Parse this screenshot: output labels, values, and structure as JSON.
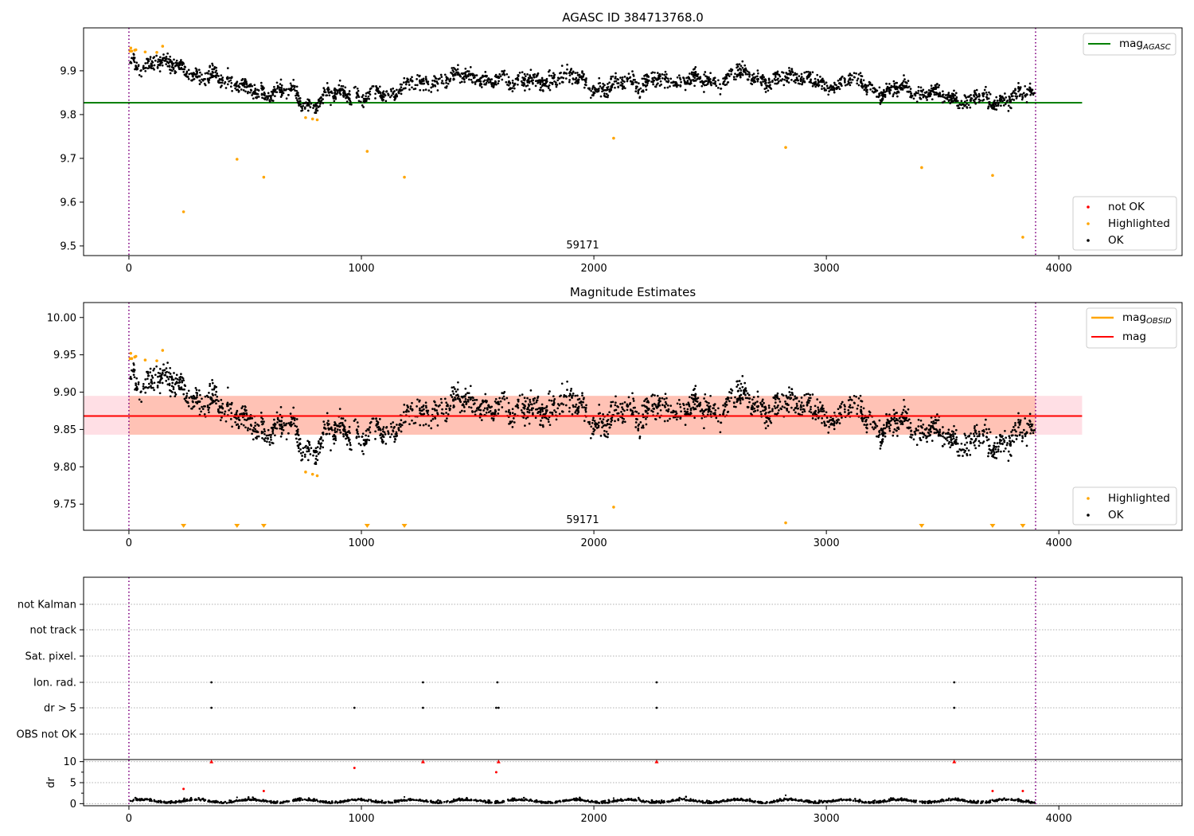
{
  "chart_data": [
    {
      "type": "scatter",
      "title": "AGASC ID 384713768.0",
      "xlim": [
        -195,
        4530
      ],
      "ylim": [
        9.478,
        9.998
      ],
      "xticks": [
        0,
        1000,
        2000,
        3000,
        4000
      ],
      "yticks": [
        9.5,
        9.6,
        9.7,
        9.8,
        9.9
      ],
      "ytick_labels": [
        "9.5",
        "9.6",
        "9.7",
        "9.8",
        "9.9"
      ],
      "xlabel": "",
      "ylabel": "",
      "annotation": "59171",
      "vlines": [
        0,
        3900
      ],
      "hline": {
        "name": "mag_AGASC",
        "label_main": "mag",
        "label_sub": "AGASC",
        "value": 9.827,
        "color": "#008000",
        "x_range": [
          -195,
          4100
        ]
      },
      "legend_top": {
        "placement": "top-right",
        "entries": [
          {
            "label": "mag",
            "sub": "AGASC",
            "color": "#008000"
          }
        ]
      },
      "legend_bottom": {
        "placement": "lower-right",
        "entries": [
          {
            "label": "not OK",
            "color": "#ff0000"
          },
          {
            "label": "Highlighted",
            "color": "#ffa500"
          },
          {
            "label": "OK",
            "color": "#000000"
          }
        ]
      },
      "highlighted": {
        "x": [
          5,
          8,
          12,
          25,
          30,
          70,
          120,
          145,
          235,
          465,
          580,
          760,
          790,
          810,
          1025,
          1185,
          2085,
          2825,
          3410,
          3715,
          3845
        ],
        "y": [
          9.945,
          9.952,
          9.945,
          9.947,
          9.948,
          9.943,
          9.942,
          9.956,
          9.578,
          9.698,
          9.657,
          9.793,
          9.79,
          9.788,
          9.716,
          9.657,
          9.746,
          9.725,
          9.679,
          9.661,
          9.52
        ]
      },
      "ok_trend": {
        "x": [
          0,
          50,
          100,
          150,
          200,
          250,
          300,
          350,
          400,
          450,
          500,
          550,
          600,
          650,
          700,
          750,
          800,
          850,
          900,
          950,
          1000,
          1050,
          1100,
          1150,
          1200,
          1250,
          1300,
          1350,
          1400,
          1450,
          1500,
          1550,
          1600,
          1650,
          1700,
          1750,
          1800,
          1850,
          1900,
          1950,
          2000,
          2050,
          2100,
          2150,
          2200,
          2250,
          2300,
          2350,
          2400,
          2450,
          2500,
          2550,
          2600,
          2650,
          2700,
          2750,
          2800,
          2850,
          2900,
          2950,
          3000,
          3050,
          3100,
          3150,
          3200,
          3250,
          3300,
          3350,
          3400,
          3450,
          3500,
          3550,
          3600,
          3650,
          3700,
          3750,
          3800,
          3850,
          3900
        ],
        "y": [
          9.92,
          9.91,
          9.912,
          9.92,
          9.915,
          9.895,
          9.885,
          9.893,
          9.885,
          9.87,
          9.865,
          9.855,
          9.84,
          9.858,
          9.86,
          9.82,
          9.82,
          9.848,
          9.855,
          9.84,
          9.833,
          9.86,
          9.845,
          9.848,
          9.875,
          9.872,
          9.865,
          9.878,
          9.892,
          9.89,
          9.88,
          9.875,
          9.885,
          9.872,
          9.882,
          9.878,
          9.872,
          9.885,
          9.89,
          9.88,
          9.855,
          9.858,
          9.875,
          9.88,
          9.86,
          9.885,
          9.88,
          9.868,
          9.88,
          9.888,
          9.875,
          9.868,
          9.9,
          9.895,
          9.88,
          9.87,
          9.888,
          9.885,
          9.882,
          9.88,
          9.86,
          9.865,
          9.882,
          9.88,
          9.85,
          9.845,
          9.868,
          9.862,
          9.84,
          9.852,
          9.842,
          9.832,
          9.825,
          9.848,
          9.83,
          9.825,
          9.84,
          9.855,
          9.843
        ]
      }
    },
    {
      "type": "scatter",
      "title": "Magnitude Estimates",
      "xlim": [
        -195,
        4530
      ],
      "ylim": [
        9.715,
        10.02
      ],
      "xticks": [
        0,
        1000,
        2000,
        3000,
        4000
      ],
      "yticks": [
        9.75,
        9.8,
        9.85,
        9.9,
        9.95,
        10.0
      ],
      "ytick_labels": [
        "9.75",
        "9.80",
        "9.85",
        "9.90",
        "9.95",
        "10.00"
      ],
      "xlabel": "",
      "ylabel": "",
      "annotation": "59171",
      "vlines": [
        0,
        3900
      ],
      "mag_line": {
        "label": "mag",
        "value": 9.868,
        "color": "#ff0000"
      },
      "mag_obsid": {
        "label_main": "mag",
        "label_sub": "OBSID",
        "color": "#ffa500",
        "band": [
          9.843,
          9.895
        ],
        "x_range": [
          -195,
          4100
        ]
      },
      "legend_top": {
        "placement": "top-right",
        "entries": [
          {
            "label": "mag",
            "sub": "OBSID",
            "color": "#ffa500"
          },
          {
            "label": "mag",
            "sub": "",
            "color": "#ff0000"
          }
        ]
      },
      "legend_bottom": {
        "placement": "lower-right",
        "entries": [
          {
            "label": "Highlighted",
            "color": "#ffa500"
          },
          {
            "label": "OK",
            "color": "#000000"
          }
        ]
      },
      "highlighted_offscale_x": [
        235,
        465,
        580,
        1025,
        1185,
        3410,
        3715,
        3845
      ],
      "highlighted_inrange": {
        "x": [
          5,
          8,
          12,
          25,
          30,
          70,
          120,
          145,
          760,
          790,
          810,
          2085,
          2825
        ],
        "y": [
          9.945,
          9.952,
          9.945,
          9.947,
          9.948,
          9.943,
          9.942,
          9.956,
          9.793,
          9.79,
          9.788,
          9.746,
          9.725
        ]
      }
    },
    {
      "type": "scatter",
      "title": "",
      "xlim": [
        -195,
        4530
      ],
      "xticks": [
        0,
        1000,
        2000,
        3000,
        4000
      ],
      "flag_rows": [
        "not Kalman",
        "not track",
        "Sat. pixel.",
        "Ion. rad.",
        "dr > 5",
        "OBS not OK"
      ],
      "flags": {
        "Ion. rad.": [
          355,
          1265,
          1585,
          2270,
          3550
        ],
        "dr > 5": [
          355,
          970,
          1265,
          1580,
          1590,
          2270,
          3550
        ]
      },
      "vlines": [
        0,
        3900
      ],
      "dr_panel": {
        "ylabel": "dr",
        "ylim": [
          -0.5,
          10.5
        ],
        "yticks": [
          0,
          5,
          10
        ],
        "ytick_labels": [
          "0",
          "5",
          "10"
        ],
        "red_points": {
          "x": [
            235,
            355,
            580,
            970,
            1265,
            1580,
            1590,
            2270,
            3550,
            3715,
            3845
          ],
          "y": [
            3.5,
            10,
            3,
            8.5,
            10,
            7.5,
            10,
            10,
            10,
            3,
            3
          ]
        }
      }
    }
  ]
}
